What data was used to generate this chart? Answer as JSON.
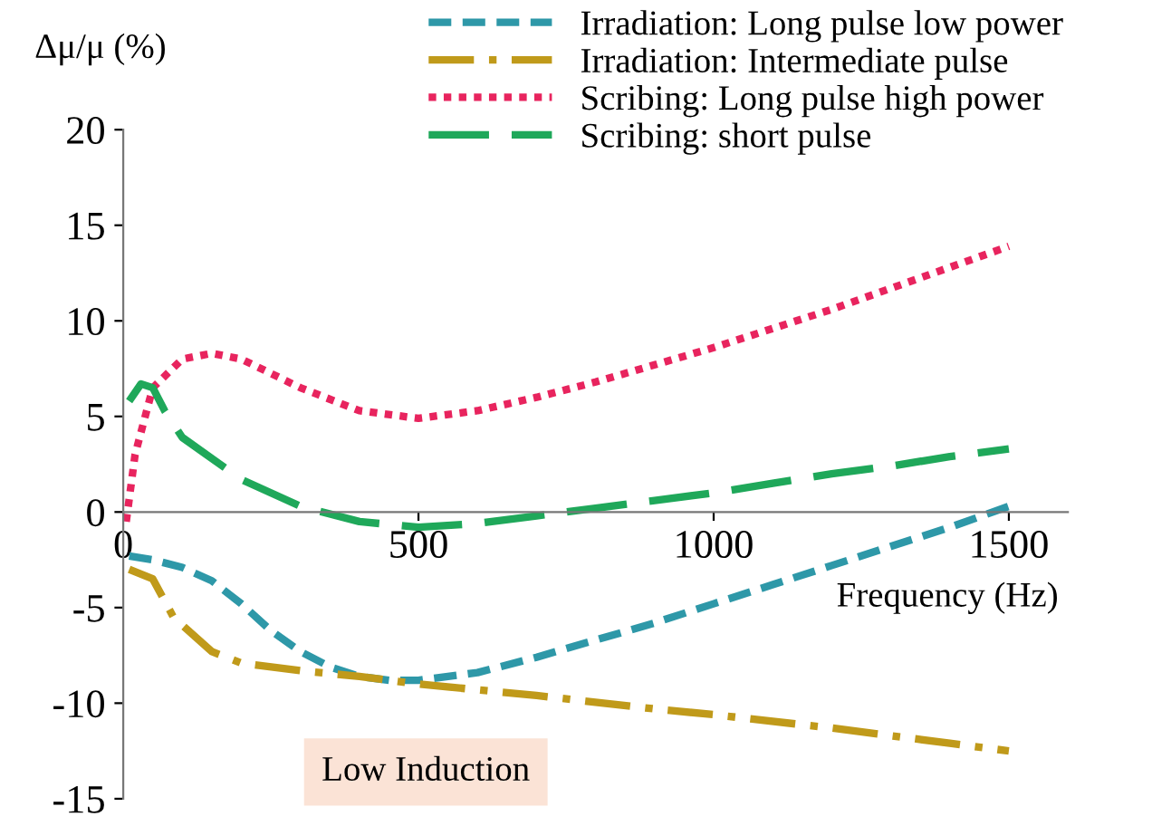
{
  "chart_data": {
    "type": "line",
    "ylabel": "Δμ/μ (%)",
    "xlabel": "Frequency (Hz)",
    "xlim": [
      0,
      1600
    ],
    "xticks": [
      0,
      500,
      1000,
      1500
    ],
    "ylim": [
      -15,
      20
    ],
    "yticks": [
      -15,
      -10,
      -5,
      0,
      5,
      10,
      15,
      20
    ],
    "grid": false,
    "legend": "top right",
    "annotations": [
      "Low Induction"
    ],
    "series": [
      {
        "name": "Irradiation: Long pulse low power",
        "color": "#2e98a8",
        "line_style": "dashed",
        "x": [
          10,
          50,
          100,
          150,
          200,
          250,
          300,
          350,
          400,
          450,
          500,
          600,
          700,
          800,
          900,
          1000,
          1100,
          1200,
          1300,
          1400,
          1500
        ],
        "values": [
          -2.3,
          -2.5,
          -2.9,
          -3.6,
          -4.8,
          -6.2,
          -7.3,
          -8.1,
          -8.6,
          -8.8,
          -8.8,
          -8.4,
          -7.6,
          -6.7,
          -5.8,
          -4.8,
          -3.8,
          -2.8,
          -1.8,
          -0.8,
          0.3
        ]
      },
      {
        "name": "Irradiation: Intermediate pulse",
        "color": "#c09a1a",
        "line_style": "dashdot",
        "x": [
          10,
          50,
          85,
          150,
          200,
          300,
          400,
          500,
          700,
          900,
          1000,
          1200,
          1400,
          1500
        ],
        "values": [
          -3.0,
          -3.5,
          -5.5,
          -7.3,
          -7.9,
          -8.3,
          -8.6,
          -9.0,
          -9.6,
          -10.3,
          -10.6,
          -11.3,
          -12.1,
          -12.5
        ]
      },
      {
        "name": "Scribing: Long pulse high power",
        "color": "#e8245e",
        "line_style": "dotted",
        "x": [
          5,
          20,
          50,
          100,
          150,
          200,
          300,
          400,
          500,
          600,
          700,
          800,
          900,
          1000,
          1100,
          1200,
          1300,
          1400,
          1500
        ],
        "values": [
          -0.5,
          3.0,
          6.5,
          8.0,
          8.3,
          8.0,
          6.5,
          5.3,
          4.9,
          5.3,
          6.0,
          6.8,
          7.7,
          8.6,
          9.6,
          10.6,
          11.7,
          12.8,
          13.9
        ]
      },
      {
        "name": "Scribing: short pulse",
        "color": "#1fa85a",
        "line_style": "longdash",
        "x": [
          10,
          30,
          50,
          70,
          100,
          200,
          300,
          400,
          500,
          600,
          700,
          800,
          900,
          1000,
          1100,
          1200,
          1300,
          1400,
          1500
        ],
        "values": [
          5.8,
          6.7,
          6.5,
          5.3,
          3.9,
          1.7,
          0.3,
          -0.5,
          -0.8,
          -0.6,
          -0.2,
          0.2,
          0.6,
          1.0,
          1.5,
          2.0,
          2.4,
          2.9,
          3.3
        ]
      }
    ]
  }
}
